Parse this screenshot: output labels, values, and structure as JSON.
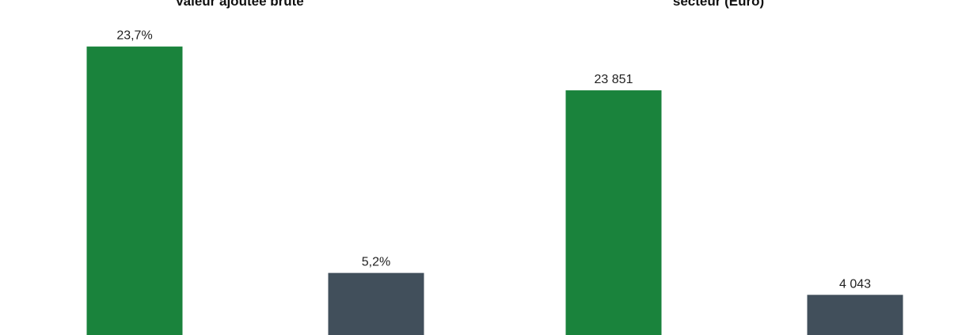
{
  "chart_data": [
    {
      "type": "bar",
      "title": "Valeur ajoutée brute",
      "categories": [
        "",
        ""
      ],
      "values": [
        23.7,
        5.2
      ],
      "data_labels": [
        "23,7%",
        "5,2%"
      ],
      "colors": [
        "#1a833c",
        "#414f5b"
      ],
      "ylim": [
        0,
        27.5
      ],
      "grid": false,
      "legend": "none"
    },
    {
      "type": "bar",
      "title": "secteur (Euro)",
      "categories": [
        "",
        ""
      ],
      "values": [
        23851,
        4043
      ],
      "data_labels": [
        "23 851",
        "4 043"
      ],
      "colors": [
        "#1a833c",
        "#414f5b"
      ],
      "ylim": [
        0,
        32600
      ],
      "grid": false,
      "legend": "none"
    }
  ]
}
